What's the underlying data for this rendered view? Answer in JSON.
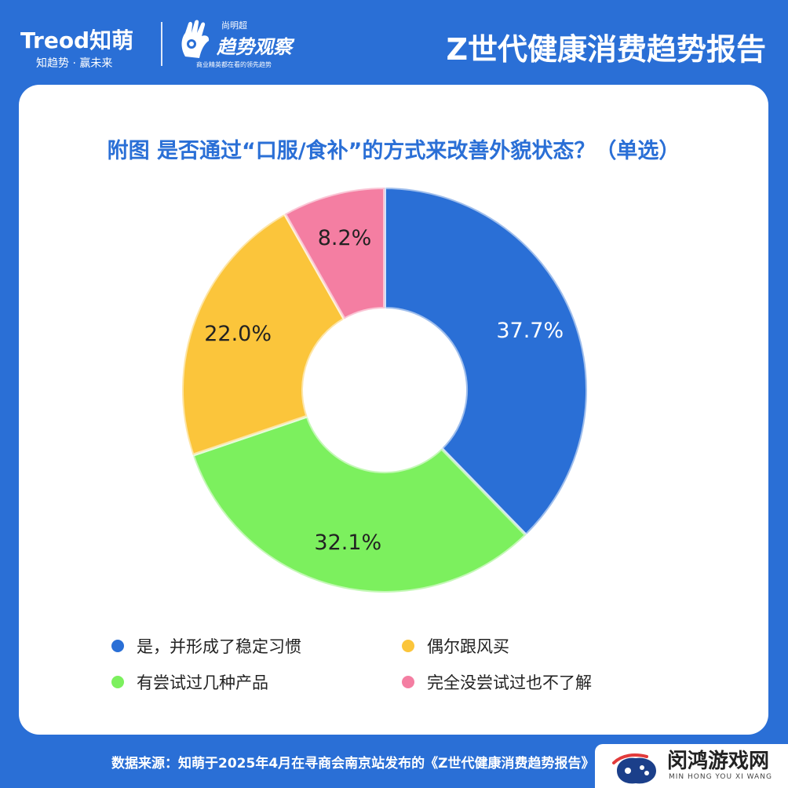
{
  "header": {
    "logo_brand": "Treod知萌",
    "logo_slogan": "知趋势 · 赢未来",
    "logo2_small": "尚明超",
    "logo2_main": "趋势观察",
    "logo2_tag": "商业精英都在看的领先趋势",
    "report_title": "Z世代健康消费趋势报告"
  },
  "chart_data": {
    "type": "pie",
    "title": "附图 是否通过“口服/食补”的方式来改善外貌状态？（单选）",
    "donut": true,
    "categories": [
      "是，并形成了稳定习惯",
      "有尝试过几种产品",
      "偶尔跟风买",
      "完全没尝试过也不了解"
    ],
    "values": [
      37.7,
      32.1,
      22.0,
      8.2
    ],
    "labels": [
      "37.7%",
      "32.1%",
      "22.0%",
      "8.2%"
    ],
    "colors": [
      "#2a6fd6",
      "#7cf05e",
      "#fbc53b",
      "#f47ea2"
    ],
    "legend_order": [
      0,
      2,
      1,
      3
    ],
    "legend_position": "bottom"
  },
  "footer": {
    "source": "数据来源：知萌于2025年4月在寻商会南京站发布的《Z世代健康消费趋势报告》"
  },
  "watermark": {
    "main": "闵鸿游戏网",
    "sub": "MIN HONG YOU XI WANG"
  }
}
